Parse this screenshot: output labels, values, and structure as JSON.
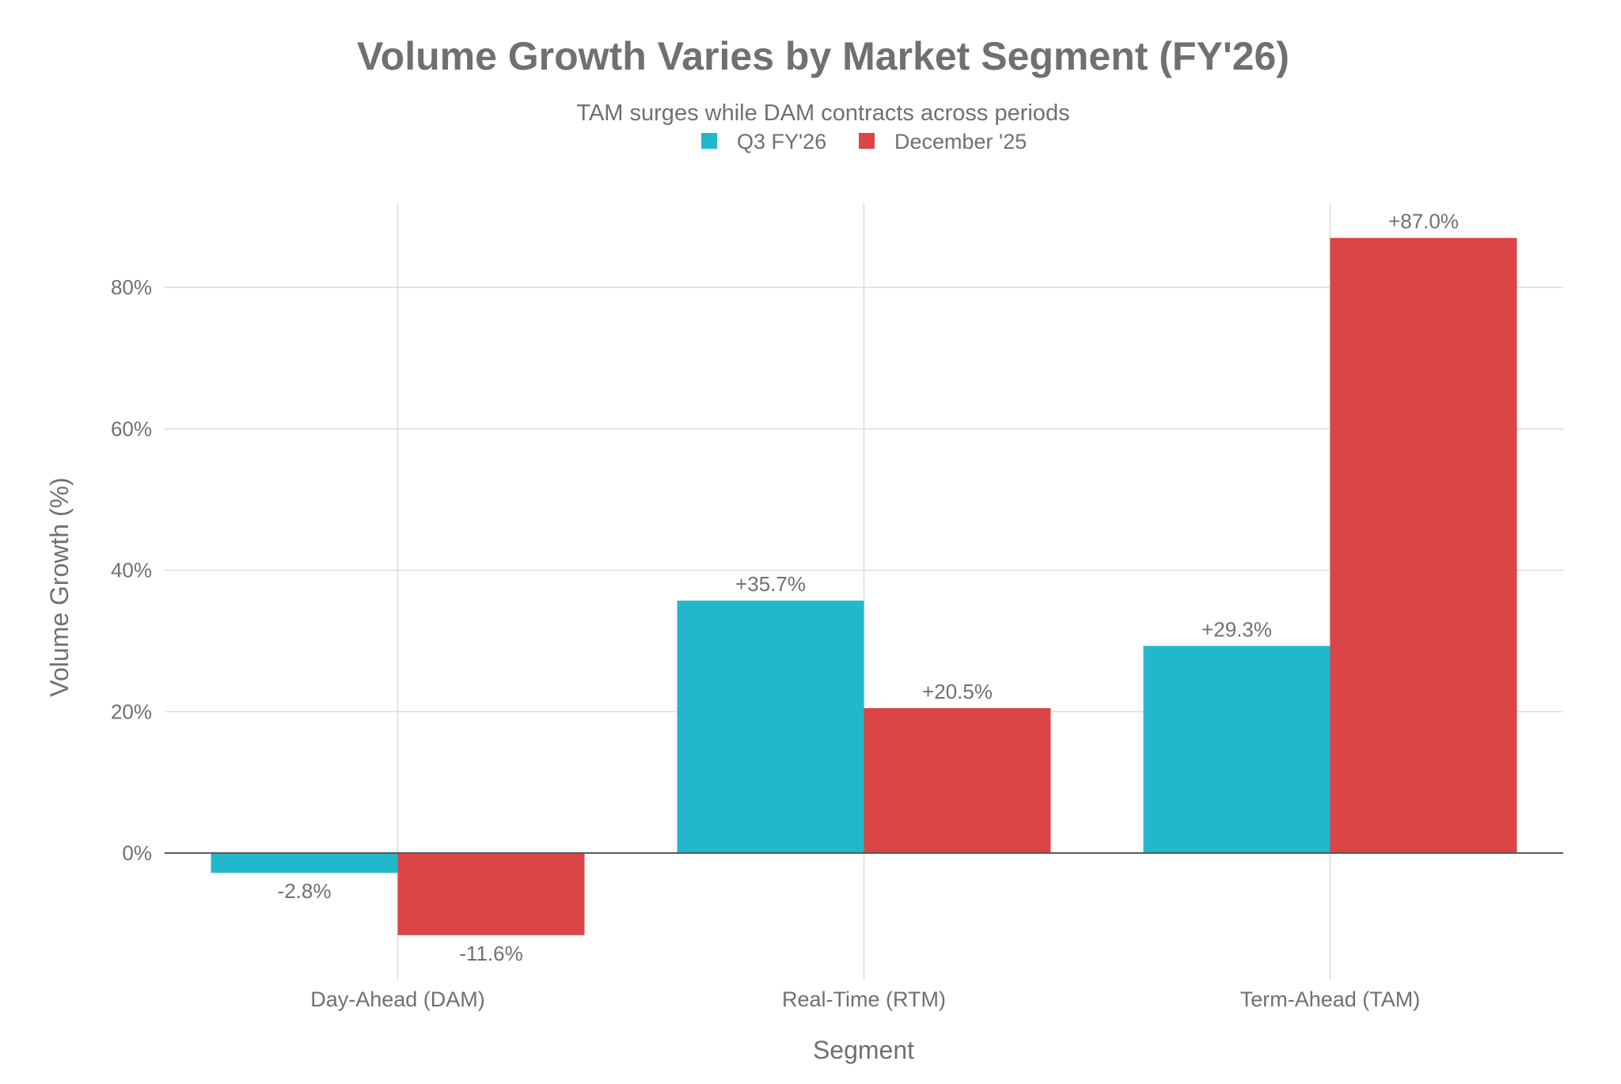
{
  "chart_data": {
    "type": "bar",
    "title": "Volume Growth Varies by Market Segment (FY'26)",
    "subtitle": "TAM surges while DAM contracts across periods",
    "xlabel": "Segment",
    "ylabel": "Volume Growth (%)",
    "categories": [
      "Day-Ahead (DAM)",
      "Real-Time (RTM)",
      "Term-Ahead (TAM)"
    ],
    "series": [
      {
        "name": "Q3 FY'26",
        "color": "#22b8cc",
        "values": [
          -2.8,
          35.7,
          29.3
        ],
        "labels": [
          "-2.8%",
          "+35.7%",
          "+29.3%"
        ]
      },
      {
        "name": "December '25",
        "color": "#db4545",
        "values": [
          -11.6,
          20.5,
          87.0
        ],
        "labels": [
          "-11.6%",
          "+20.5%",
          "+87.0%"
        ]
      }
    ],
    "yticks": [
      0,
      20,
      40,
      60,
      80
    ],
    "ytick_labels": [
      "0%",
      "20%",
      "40%",
      "60%",
      "80%"
    ],
    "ylim": [
      -18,
      92
    ],
    "grid": true,
    "legend_position": "top-center"
  }
}
